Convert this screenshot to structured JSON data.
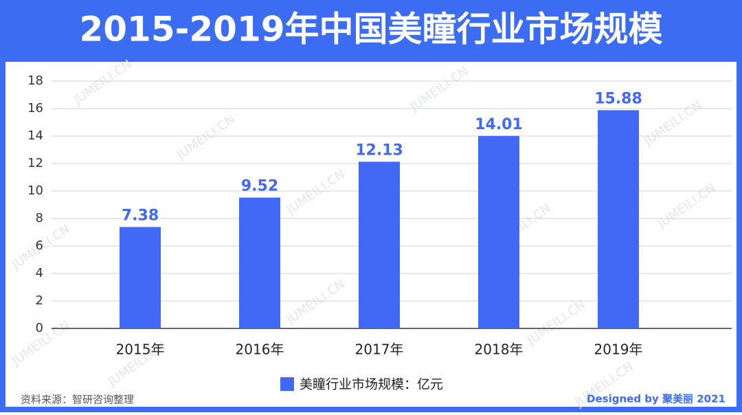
{
  "chart_data": {
    "type": "bar",
    "title": "2015-2019年中国美瞳行业市场规模",
    "categories": [
      "2015年",
      "2016年",
      "2017年",
      "2018年",
      "2019年"
    ],
    "series": [
      {
        "name": "美瞳行业市场规模：亿元",
        "color": "#4169f5",
        "values": [
          7.38,
          9.52,
          12.13,
          14.01,
          15.88
        ]
      }
    ],
    "ylim": [
      0,
      18
    ],
    "yticks": [
      0,
      2,
      4,
      6,
      8,
      10,
      12,
      14,
      16,
      18
    ],
    "grid": true,
    "source": "资料来源：智研咨询整理",
    "credit": "Designed by 聚美丽 2021",
    "watermark": "JUMEILI.CN"
  }
}
